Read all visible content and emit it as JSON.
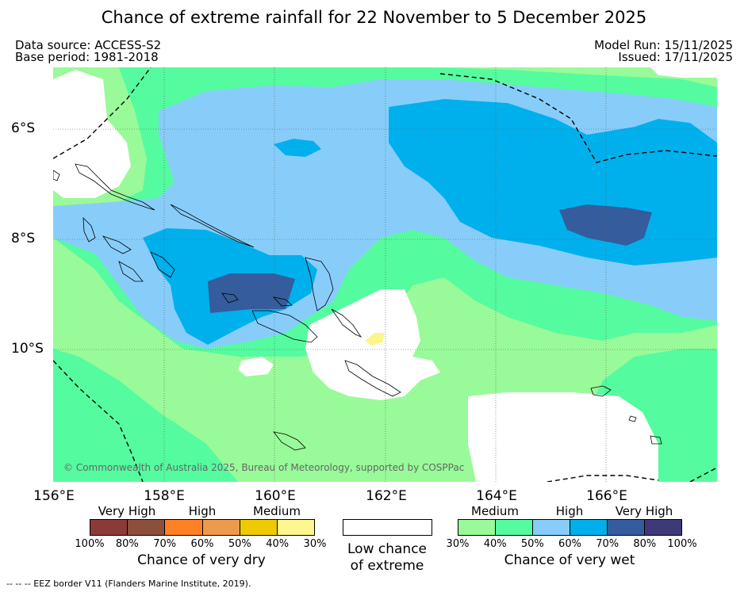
{
  "title": "Chance of extreme rainfall for 22 November to 5 December 2025",
  "header": {
    "data_source": "Data source: ACCESS-S2",
    "base_period": "Base period: 1981-2018",
    "model_run": "Model Run: 15/11/2025",
    "issued": "Issued: 17/11/2025"
  },
  "map": {
    "lat_labels": [
      "6°S",
      "8°S",
      "10°S"
    ],
    "lon_labels": [
      "156°E",
      "158°E",
      "160°E",
      "162°E",
      "164°E",
      "166°E"
    ],
    "copyright": "© Commonwealth of Australia 2025, Bureau of Meteorology, supported by COSPPac",
    "colors": {
      "ocean_30_40": "#99fa99",
      "ocean_40_50": "#55fb9f",
      "ocean_50_60": "#88cdfa",
      "ocean_60_70": "#00b0ec",
      "ocean_70_80": "#355c9c",
      "dry_30_40": "#fdf58c"
    }
  },
  "legend": {
    "dry": {
      "categories": [
        "Very High",
        "High",
        "Medium"
      ],
      "ticks": [
        "100%",
        "80%",
        "70%",
        "60%",
        "50%",
        "40%",
        "30%"
      ],
      "colors": [
        "#8b3a3a",
        "#8b4f3c",
        "#ff8124",
        "#ee9a4d",
        "#eecb00",
        "#fff68f"
      ],
      "title": "Chance of very dry"
    },
    "low": {
      "line1": "Low chance",
      "line2": "of extreme"
    },
    "wet": {
      "categories": [
        "Medium",
        "High",
        "Very High"
      ],
      "ticks": [
        "30%",
        "40%",
        "50%",
        "60%",
        "70%",
        "80%",
        "100%"
      ],
      "colors": [
        "#99fa99",
        "#55fb9f",
        "#88cdfa",
        "#00b0ec",
        "#355c9c",
        "#3e3978"
      ],
      "title": "Chance of very wet"
    }
  },
  "footer": "-- -- -- EEZ border V11 (Flanders Marine Institute, 2019)."
}
